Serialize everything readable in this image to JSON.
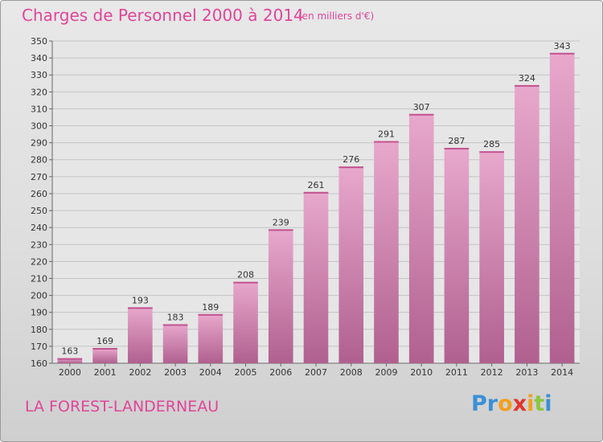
{
  "header": {
    "title": "Charges de Personnel 2000 à 2014",
    "subtitle": "(en milliers d'€)"
  },
  "footer": {
    "town": "LA FOREST-LANDERNEAU",
    "logo": [
      "P",
      "r",
      "o",
      "x",
      "i",
      "t",
      "i"
    ]
  },
  "colors": {
    "bar": "#d978b0",
    "bar_light": "#e8a8cc",
    "bar_dark": "#b0608f",
    "title": "#e0459a",
    "logo": [
      "#3a8fd6",
      "#3a8fd6",
      "#f2a01e",
      "#e2342b",
      "#f2a01e",
      "#8cc63f",
      "#3a8fd6"
    ]
  },
  "chart_data": {
    "type": "bar",
    "title": "Charges de Personnel 2000 à 2014",
    "subtitle": "(en milliers d'€)",
    "categories": [
      "2000",
      "2001",
      "2002",
      "2003",
      "2004",
      "2005",
      "2006",
      "2007",
      "2008",
      "2009",
      "2010",
      "2011",
      "2012",
      "2013",
      "2014"
    ],
    "values": [
      163,
      169,
      193,
      183,
      189,
      208,
      239,
      261,
      276,
      291,
      307,
      287,
      285,
      324,
      343
    ],
    "ylim": [
      160,
      350
    ],
    "yticks": [
      160,
      170,
      180,
      190,
      200,
      210,
      220,
      230,
      240,
      250,
      260,
      270,
      280,
      290,
      300,
      310,
      320,
      330,
      340,
      350
    ],
    "grid": true,
    "xlabel": "",
    "ylabel": ""
  }
}
